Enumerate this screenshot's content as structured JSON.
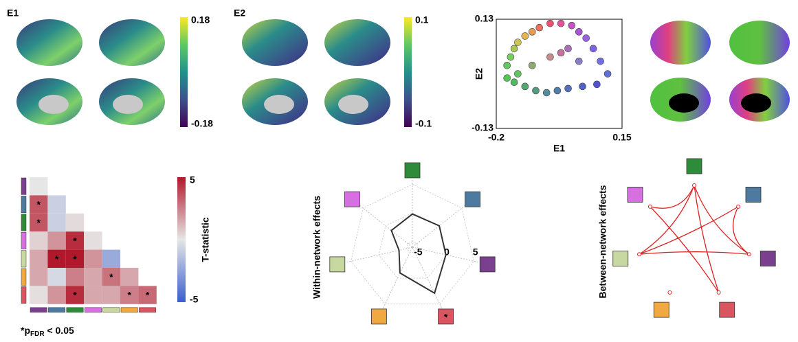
{
  "brain_maps": [
    {
      "label": "E1",
      "colorbar_ticks": [
        0.18,
        -0.18
      ]
    },
    {
      "label": "E2",
      "colorbar_ticks": [
        0.1,
        -0.1
      ]
    }
  ],
  "network_colors": [
    "#2e8b3a",
    "#4e7aa0",
    "#7b3f8f",
    "#d95560",
    "#f0a840",
    "#c7d9a0",
    "#d66fe0"
  ],
  "chart_data": [
    {
      "type": "scatter",
      "xlabel": "E1",
      "ylabel": "E2",
      "xlim": [
        -0.2,
        0.15
      ],
      "ylim": [
        -0.13,
        0.13
      ],
      "xticks": [
        -0.2,
        0.15
      ],
      "yticks": [
        0.13,
        -0.13
      ],
      "x": [
        -0.17,
        -0.16,
        -0.15,
        -0.14,
        -0.12,
        -0.1,
        -0.08,
        -0.05,
        -0.02,
        0.01,
        0.03,
        0.05,
        0.07,
        0.09,
        0.11,
        -0.05,
        -0.02,
        0,
        0.03,
        -0.17,
        -0.15,
        -0.12,
        -0.09,
        -0.06,
        -0.03,
        0,
        0.04,
        0.08,
        -0.14,
        -0.1
      ],
      "y": [
        0.02,
        0.04,
        0.06,
        0.075,
        0.09,
        0.1,
        0.11,
        0.12,
        0.12,
        0.115,
        0.1,
        0.085,
        0.06,
        0.03,
        0,
        0.04,
        0.05,
        0.06,
        0.03,
        -0.01,
        -0.02,
        -0.03,
        -0.04,
        -0.045,
        -0.04,
        -0.035,
        -0.03,
        -0.025,
        0,
        0.02
      ],
      "colors": [
        "#4fc24f",
        "#6cc84a",
        "#a0c040",
        "#c8c040",
        "#e0b040",
        "#e89040",
        "#e86050",
        "#e84060",
        "#e04090",
        "#c040c0",
        "#a040d0",
        "#9050e0",
        "#7050e0",
        "#6060e0",
        "#5060d0",
        "#c08080",
        "#c06090",
        "#a060b0",
        "#8070c0",
        "#40c040",
        "#40b050",
        "#40a060",
        "#409070",
        "#408090",
        "#4070a0",
        "#4060b0",
        "#4050c0",
        "#4040d0",
        "#50c050",
        "#80a060"
      ]
    },
    {
      "type": "heatmap",
      "row_colors": [
        "#7b3f8f",
        "#4e7aa0",
        "#2e8b3a",
        "#d66fe0",
        "#c7d9a0",
        "#f0a840",
        "#d95560"
      ],
      "values": [
        [
          0
        ],
        [
          3.5,
          -0.8
        ],
        [
          3.5,
          -0.8,
          0.3
        ],
        [
          0.5,
          2,
          4.5,
          0.2
        ],
        [
          1.5,
          5,
          5,
          2,
          -2.2
        ],
        [
          1.5,
          -0.5,
          2.5,
          1.5,
          2.8,
          1.5
        ],
        [
          0.2,
          2,
          4.5,
          1.5,
          1.5,
          2.5,
          3
        ]
      ],
      "labels": [
        [
          null
        ],
        [
          "*",
          null
        ],
        [
          "*",
          null,
          null
        ],
        [
          null,
          null,
          "*",
          null
        ],
        [
          null,
          "*",
          "*",
          null,
          null
        ],
        [
          null,
          null,
          null,
          null,
          "*",
          null
        ],
        [
          null,
          null,
          "*",
          null,
          null,
          "*",
          "*"
        ]
      ],
      "zlim": [
        -5,
        5
      ],
      "zticks": [
        5,
        -5
      ],
      "colorbar_label": "T-statistic",
      "footnote": {
        "prefix": "*p",
        "sub": "FDR",
        "suffix": " < 0.05"
      }
    },
    {
      "type": "radar",
      "ylabel": "Within-network effects",
      "rlim": [
        -6,
        6
      ],
      "rticks": [
        -5,
        0,
        5
      ],
      "values": [
        -0.2,
        0,
        0,
        2.9,
        -1,
        -3.6,
        -1.3
      ],
      "significance": [
        null,
        null,
        null,
        "*",
        null,
        null,
        null
      ]
    }
  ],
  "between_network": {
    "ylabel": "Between-network effects"
  }
}
